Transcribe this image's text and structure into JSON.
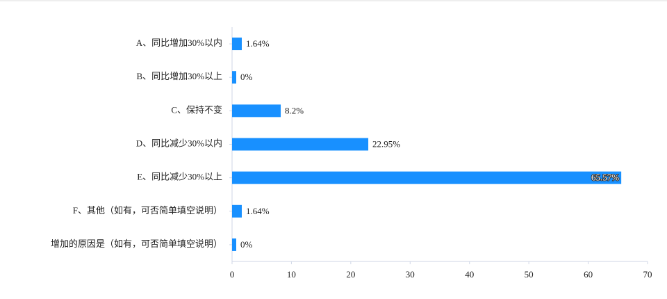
{
  "chart_data": {
    "type": "bar",
    "orientation": "horizontal",
    "categories": [
      "A、同比增加30%以内",
      "B、同比增加30%以上",
      "C、保持不变",
      "D、同比减少30%以内",
      "E、同比减少30%以上",
      "F、其他（如有，可否简单填空说明）",
      "增加的原因是（如有，可否简单填空说明）"
    ],
    "values": [
      1.64,
      0,
      8.2,
      22.95,
      65.57,
      1.64,
      0
    ],
    "value_labels": [
      "1.64%",
      "0%",
      "8.2%",
      "22.95%",
      "65.57%",
      "1.64%",
      "0%"
    ],
    "color": "#1890ff",
    "xlim": [
      0,
      70
    ],
    "xticks": [
      0,
      10,
      20,
      30,
      40,
      50,
      60,
      70
    ]
  }
}
